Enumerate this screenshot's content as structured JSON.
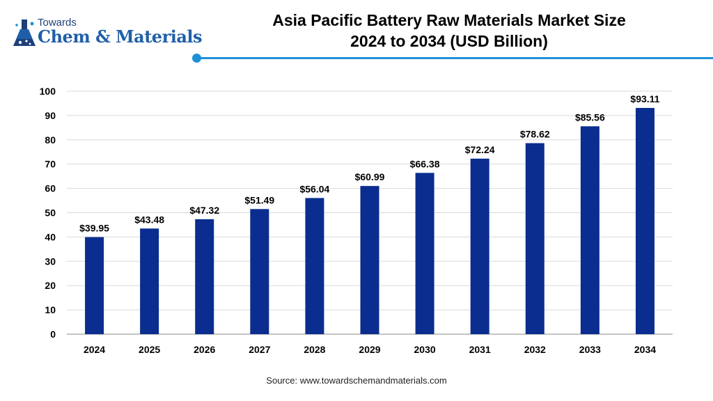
{
  "logo": {
    "top_text": "Towards",
    "main_text": "Chem & Materials",
    "icon": "flask-icon"
  },
  "title_line1": "Asia Pacific Battery Raw Materials Market Size",
  "title_line2": "2024 to 2034 (USD Billion)",
  "source": "Source: www.towardschemandmaterials.com",
  "colors": {
    "bar": "#0a2d8f",
    "accent": "#1e90d6",
    "grid": "#d9d9d9"
  },
  "chart_data": {
    "type": "bar",
    "categories": [
      "2024",
      "2025",
      "2026",
      "2027",
      "2028",
      "2029",
      "2030",
      "2031",
      "2032",
      "2033",
      "2034"
    ],
    "values": [
      39.95,
      43.48,
      47.32,
      51.49,
      56.04,
      60.99,
      66.38,
      72.24,
      78.62,
      85.56,
      93.11
    ],
    "data_labels": [
      "$39.95",
      "$43.48",
      "$47.32",
      "$51.49",
      "$56.04",
      "$60.99",
      "$66.38",
      "$72.24",
      "$78.62",
      "$85.56",
      "$93.11"
    ],
    "ylim": [
      0,
      100
    ],
    "yticks": [
      0,
      10,
      20,
      30,
      40,
      50,
      60,
      70,
      80,
      90,
      100
    ],
    "grid": true,
    "legend": "none"
  }
}
